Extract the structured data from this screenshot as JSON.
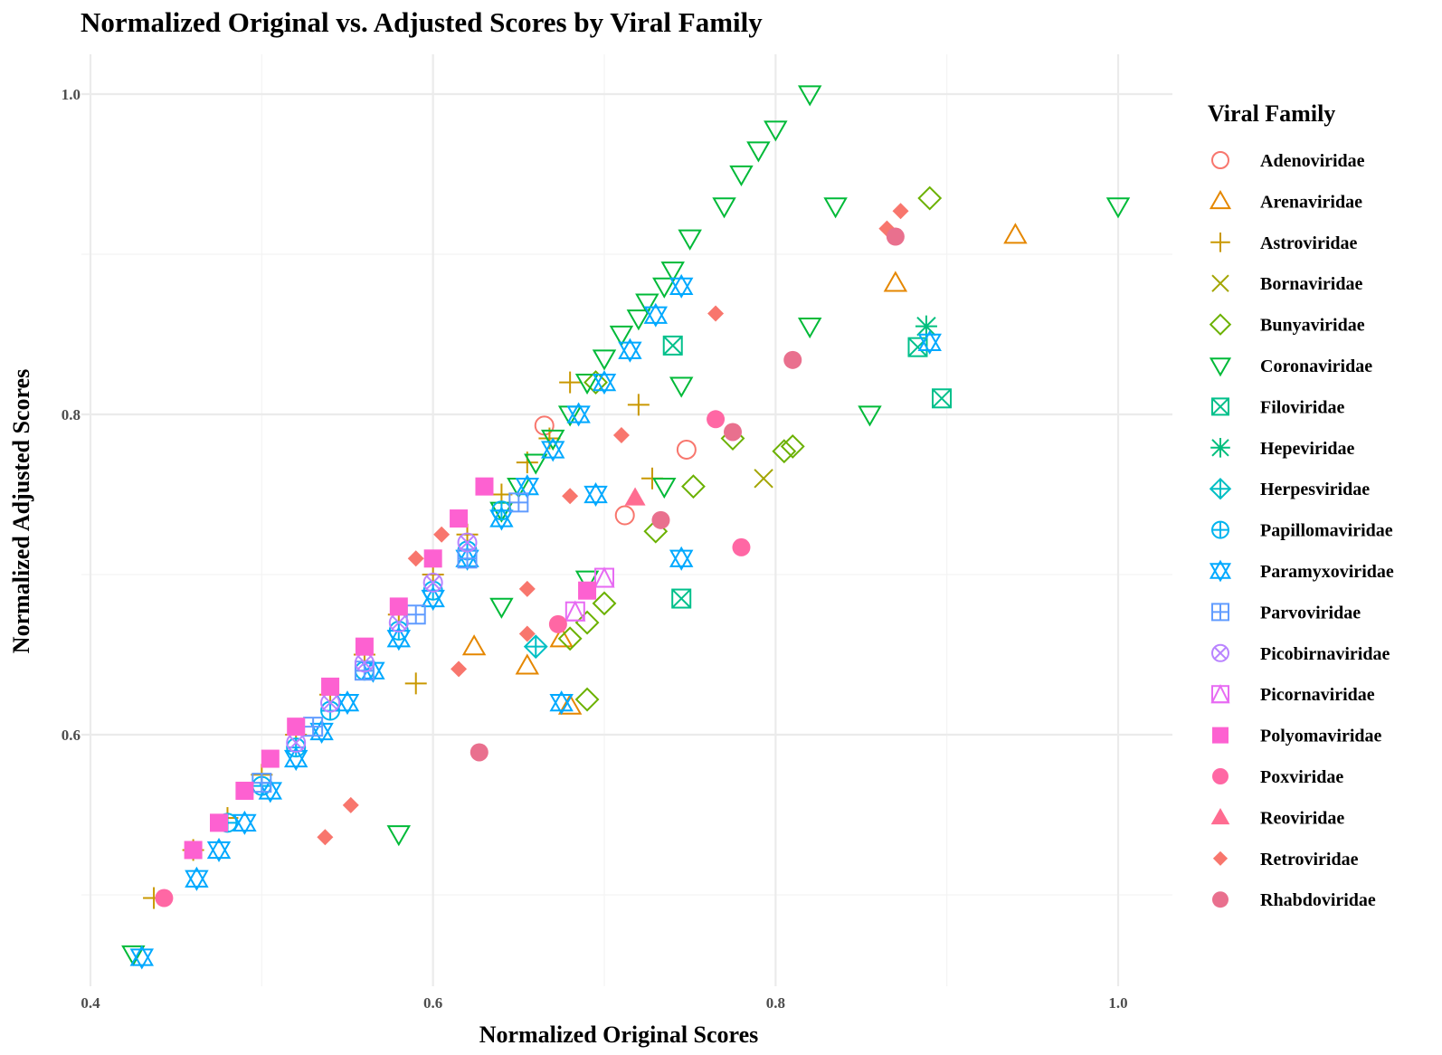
{
  "chart_data": {
    "type": "scatter",
    "title": "Normalized Original vs. Adjusted Scores by Viral Family",
    "xlabel": "Normalized Original Scores",
    "ylabel": "Normalized Adjusted Scores",
    "xlim": [
      0.4,
      1.0
    ],
    "ylim": [
      0.5,
      1.0
    ],
    "x_ticks": [
      "0.4",
      "0.6",
      "0.8",
      "1.0"
    ],
    "y_ticks": [
      "0.6",
      "0.8",
      "1.0"
    ],
    "grid": true,
    "legend_title": "Viral Family",
    "legend_position": "right",
    "series": [
      {
        "name": "Adenoviridae",
        "color": "#F8766D",
        "shape": "circle-open",
        "x": [
          0.665,
          0.748,
          0.712
        ],
        "y": [
          0.793,
          0.778,
          0.737
        ]
      },
      {
        "name": "Arenaviridae",
        "color": "#E58700",
        "shape": "triangle-open",
        "x": [
          0.94,
          0.87,
          0.624,
          0.655,
          0.68,
          0.675
        ],
        "y": [
          0.912,
          0.882,
          0.655,
          0.643,
          0.618,
          0.66
        ]
      },
      {
        "name": "Astroviridae",
        "color": "#C99800",
        "shape": "plus",
        "x": [
          0.72,
          0.728,
          0.59,
          0.437,
          0.46,
          0.48,
          0.5,
          0.52,
          0.54,
          0.56,
          0.58,
          0.6,
          0.62,
          0.64,
          0.655,
          0.668,
          0.68
        ],
        "y": [
          0.806,
          0.76,
          0.632,
          0.498,
          0.528,
          0.548,
          0.575,
          0.6,
          0.625,
          0.65,
          0.675,
          0.7,
          0.725,
          0.75,
          0.77,
          0.785,
          0.82
        ]
      },
      {
        "name": "Bornaviridae",
        "color": "#A3A500",
        "shape": "cross",
        "x": [
          0.793
        ],
        "y": [
          0.76
        ]
      },
      {
        "name": "Bunyaviridae",
        "color": "#6BB100",
        "shape": "diamond-open",
        "x": [
          0.89,
          0.81,
          0.805,
          0.775,
          0.752,
          0.73,
          0.7,
          0.69,
          0.68,
          0.69,
          0.695
        ],
        "y": [
          0.935,
          0.78,
          0.777,
          0.785,
          0.755,
          0.727,
          0.682,
          0.67,
          0.66,
          0.622,
          0.82
        ]
      },
      {
        "name": "Coronaviridae",
        "color": "#00BA38",
        "shape": "triangle-down-open",
        "x": [
          0.82,
          0.8,
          0.79,
          0.78,
          0.77,
          0.75,
          0.74,
          0.735,
          0.725,
          0.72,
          0.71,
          0.7,
          0.69,
          0.68,
          0.67,
          0.66,
          0.65,
          0.64,
          0.835,
          0.82,
          0.745,
          0.735,
          0.855,
          1.0,
          0.64,
          0.58,
          0.425,
          0.69
        ],
        "y": [
          1.0,
          0.978,
          0.965,
          0.95,
          0.93,
          0.91,
          0.89,
          0.88,
          0.87,
          0.86,
          0.85,
          0.835,
          0.82,
          0.8,
          0.785,
          0.77,
          0.755,
          0.74,
          0.93,
          0.855,
          0.818,
          0.755,
          0.8,
          0.93,
          0.68,
          0.538,
          0.463,
          0.697
        ]
      },
      {
        "name": "Filoviridae",
        "color": "#00C08B",
        "shape": "square-cross",
        "x": [
          0.74,
          0.897,
          0.883,
          0.745
        ],
        "y": [
          0.843,
          0.81,
          0.842,
          0.685
        ]
      },
      {
        "name": "Hepeviridae",
        "color": "#00BF7D",
        "shape": "asterisk",
        "x": [
          0.888
        ],
        "y": [
          0.855
        ]
      },
      {
        "name": "Herpesviridae",
        "color": "#00BFC4",
        "shape": "diamond-plus",
        "x": [
          0.66
        ],
        "y": [
          0.655
        ]
      },
      {
        "name": "Papillomaviridae",
        "color": "#00B4EF",
        "shape": "circle-plus",
        "x": [
          0.48,
          0.5,
          0.52,
          0.54,
          0.56,
          0.58,
          0.6,
          0.62,
          0.64
        ],
        "y": [
          0.545,
          0.568,
          0.592,
          0.615,
          0.64,
          0.665,
          0.69,
          0.715,
          0.74
        ]
      },
      {
        "name": "Paramyxoviridae",
        "color": "#00A9FF",
        "shape": "star6",
        "x": [
          0.43,
          0.462,
          0.475,
          0.49,
          0.505,
          0.52,
          0.535,
          0.55,
          0.565,
          0.58,
          0.6,
          0.62,
          0.64,
          0.655,
          0.67,
          0.685,
          0.7,
          0.715,
          0.73,
          0.745,
          0.695,
          0.745,
          0.89,
          0.675
        ],
        "y": [
          0.461,
          0.51,
          0.528,
          0.545,
          0.565,
          0.585,
          0.602,
          0.62,
          0.64,
          0.66,
          0.685,
          0.71,
          0.735,
          0.755,
          0.778,
          0.8,
          0.82,
          0.84,
          0.862,
          0.88,
          0.75,
          0.71,
          0.845,
          0.62
        ]
      },
      {
        "name": "Parvoviridae",
        "color": "#619CFF",
        "shape": "square-plus",
        "x": [
          0.5,
          0.53,
          0.56,
          0.59,
          0.62,
          0.65
        ],
        "y": [
          0.57,
          0.605,
          0.64,
          0.675,
          0.71,
          0.745
        ]
      },
      {
        "name": "Picobirnaviridae",
        "color": "#B983FF",
        "shape": "circle-cross",
        "x": [
          0.52,
          0.54,
          0.56,
          0.58,
          0.6,
          0.62
        ],
        "y": [
          0.595,
          0.62,
          0.645,
          0.67,
          0.695,
          0.72
        ]
      },
      {
        "name": "Picornaviridae",
        "color": "#E76BF3",
        "shape": "square-triangle",
        "x": [
          0.7,
          0.683
        ],
        "y": [
          0.698,
          0.677
        ]
      },
      {
        "name": "Polyomaviridae",
        "color": "#FD61D1",
        "shape": "square-filled",
        "x": [
          0.46,
          0.475,
          0.49,
          0.505,
          0.52,
          0.54,
          0.56,
          0.58,
          0.6,
          0.615,
          0.63,
          0.69
        ],
        "y": [
          0.528,
          0.545,
          0.565,
          0.585,
          0.605,
          0.63,
          0.655,
          0.68,
          0.71,
          0.735,
          0.755,
          0.69
        ]
      },
      {
        "name": "Poxviridae",
        "color": "#FF67A4",
        "shape": "circle-filled",
        "x": [
          0.443,
          0.765,
          0.78,
          0.673
        ],
        "y": [
          0.498,
          0.797,
          0.717,
          0.669
        ]
      },
      {
        "name": "Reoviridae",
        "color": "#FF6C91",
        "shape": "triangle-filled",
        "x": [
          0.718
        ],
        "y": [
          0.748
        ]
      },
      {
        "name": "Retroviridae",
        "color": "#F8766D",
        "shape": "diamond-filled",
        "x": [
          0.873,
          0.865,
          0.765,
          0.71,
          0.68,
          0.655,
          0.655,
          0.615,
          0.552,
          0.537,
          0.59,
          0.605
        ],
        "y": [
          0.927,
          0.916,
          0.863,
          0.787,
          0.749,
          0.691,
          0.663,
          0.641,
          0.556,
          0.536,
          0.71,
          0.725
        ]
      },
      {
        "name": "Rhabdoviridae",
        "color": "#E9708E",
        "shape": "circle-filled",
        "x": [
          0.87,
          0.81,
          0.775,
          0.733,
          0.627
        ],
        "y": [
          0.911,
          0.834,
          0.789,
          0.734,
          0.589
        ]
      }
    ]
  }
}
